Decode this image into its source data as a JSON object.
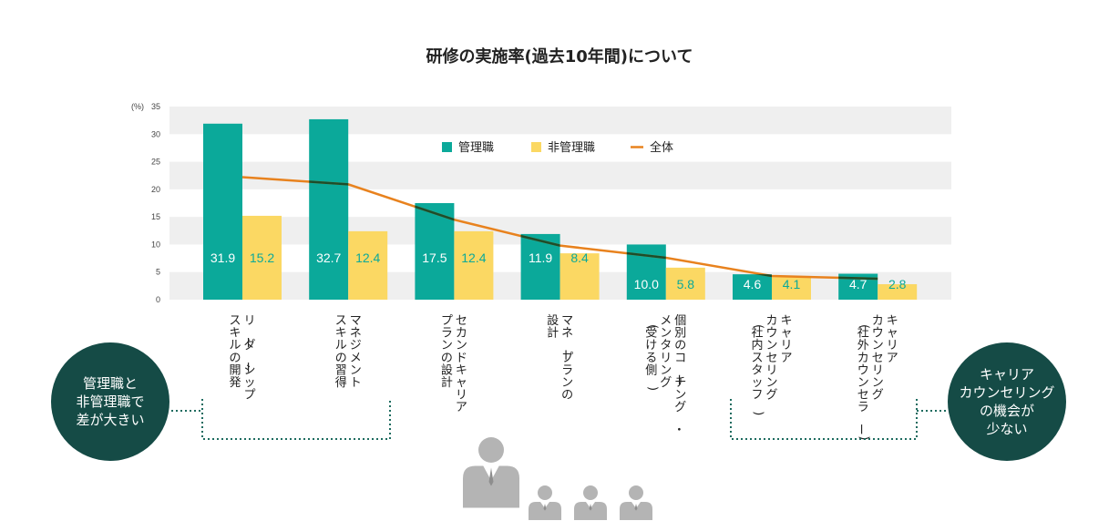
{
  "title": "研修の実施率(過去10年間)について",
  "unit_label": "(%)",
  "colors": {
    "manager": "#0ba99a",
    "non_manager": "#fbd863",
    "overall": "#e8821e",
    "overall_dark": "#1d4d2b",
    "band": "#efefef",
    "bubble": "#154b46",
    "dotted": "#1d6b5f",
    "person": "#b4b4b4"
  },
  "legend": {
    "manager": "管理職",
    "non_manager": "非管理職",
    "overall": "全体"
  },
  "callouts": {
    "left": [
      "管理職と",
      "非管理職で",
      "差が大きい"
    ],
    "right": [
      "キャリア",
      "カウンセリング",
      "の機会が",
      "少ない"
    ]
  },
  "icons": [
    "person-large-icon",
    "person-small-icon"
  ],
  "chart_data": {
    "type": "bar",
    "title": "研修の実施率(過去10年間)について",
    "ylabel": "(%)",
    "ylim": [
      0,
      35
    ],
    "yticks": [
      0,
      5,
      10,
      15,
      20,
      25,
      30,
      35
    ],
    "grid": "alternating horizontal bands",
    "legend_position": "top-center",
    "categories": [
      [
        "リーダーシップ",
        "スキルの開発"
      ],
      [
        "マネジメント",
        "スキルの習得"
      ],
      [
        "セカンドキャリア",
        "プランの設計"
      ],
      [
        "マネープランの",
        "設計"
      ],
      [
        "個別のコーチング・",
        "メンタリング",
        "(受ける側)"
      ],
      [
        "キャリア",
        "カウンセリング",
        "(社内スタッフ)"
      ],
      [
        "キャリア",
        "カウンセリング",
        "(社外カウンセラー)"
      ]
    ],
    "series": [
      {
        "name": "管理職",
        "type": "bar",
        "values": [
          31.9,
          32.7,
          17.5,
          11.9,
          10.0,
          4.6,
          4.7
        ],
        "labels": [
          "31.9",
          "32.7",
          "17.5",
          "11.9",
          "10.0",
          "4.6",
          "4.7"
        ]
      },
      {
        "name": "非管理職",
        "type": "bar",
        "values": [
          15.2,
          12.4,
          12.4,
          8.4,
          5.8,
          4.1,
          2.8
        ],
        "labels": [
          "15.2",
          "12.4",
          "12.4",
          "8.4",
          "5.8",
          "4.1",
          "2.8"
        ]
      },
      {
        "name": "全体",
        "type": "line",
        "values": [
          22.2,
          20.9,
          14.5,
          9.8,
          7.6,
          4.3,
          3.8
        ]
      }
    ]
  }
}
